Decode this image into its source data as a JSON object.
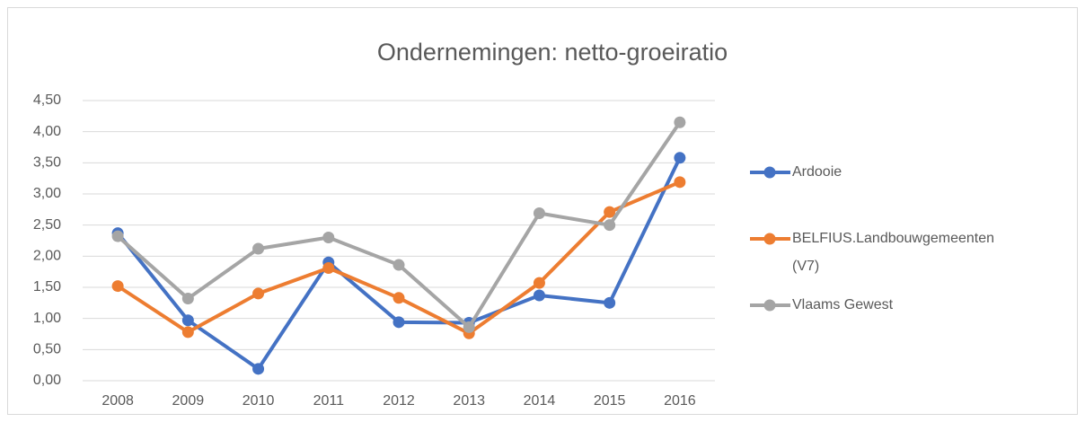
{
  "chart_data": {
    "type": "line",
    "title": "Ondernemingen: netto-groeiratio",
    "categories": [
      "2008",
      "2009",
      "2010",
      "2011",
      "2012",
      "2013",
      "2014",
      "2015",
      "2016"
    ],
    "series": [
      {
        "name": "Ardooie",
        "color": "#4472c4",
        "values": [
          2.37,
          0.97,
          0.19,
          1.9,
          0.94,
          0.93,
          1.37,
          1.25,
          3.58
        ]
      },
      {
        "name": "BELFIUS.Landbouwgemeenten (V7)",
        "color": "#ed7d31",
        "values": [
          1.52,
          0.78,
          1.4,
          1.81,
          1.33,
          0.76,
          1.57,
          2.71,
          3.19
        ]
      },
      {
        "name": "Vlaams Gewest",
        "color": "#a5a5a5",
        "values": [
          2.32,
          1.32,
          2.12,
          2.3,
          1.86,
          0.86,
          2.69,
          2.5,
          4.15
        ]
      }
    ],
    "ylim": [
      0,
      4.5
    ],
    "yticks": [
      {
        "value": 0,
        "label": "0,00"
      },
      {
        "value": 0.5,
        "label": "0,50"
      },
      {
        "value": 1,
        "label": "1,00"
      },
      {
        "value": 1.5,
        "label": "1,50"
      },
      {
        "value": 2,
        "label": "2,00"
      },
      {
        "value": 2.5,
        "label": "2,50"
      },
      {
        "value": 3,
        "label": "3,00"
      },
      {
        "value": 3.5,
        "label": "3,50"
      },
      {
        "value": 4,
        "label": "4,00"
      },
      {
        "value": 4.5,
        "label": "4,50"
      }
    ],
    "grid": true,
    "legend": "right"
  }
}
